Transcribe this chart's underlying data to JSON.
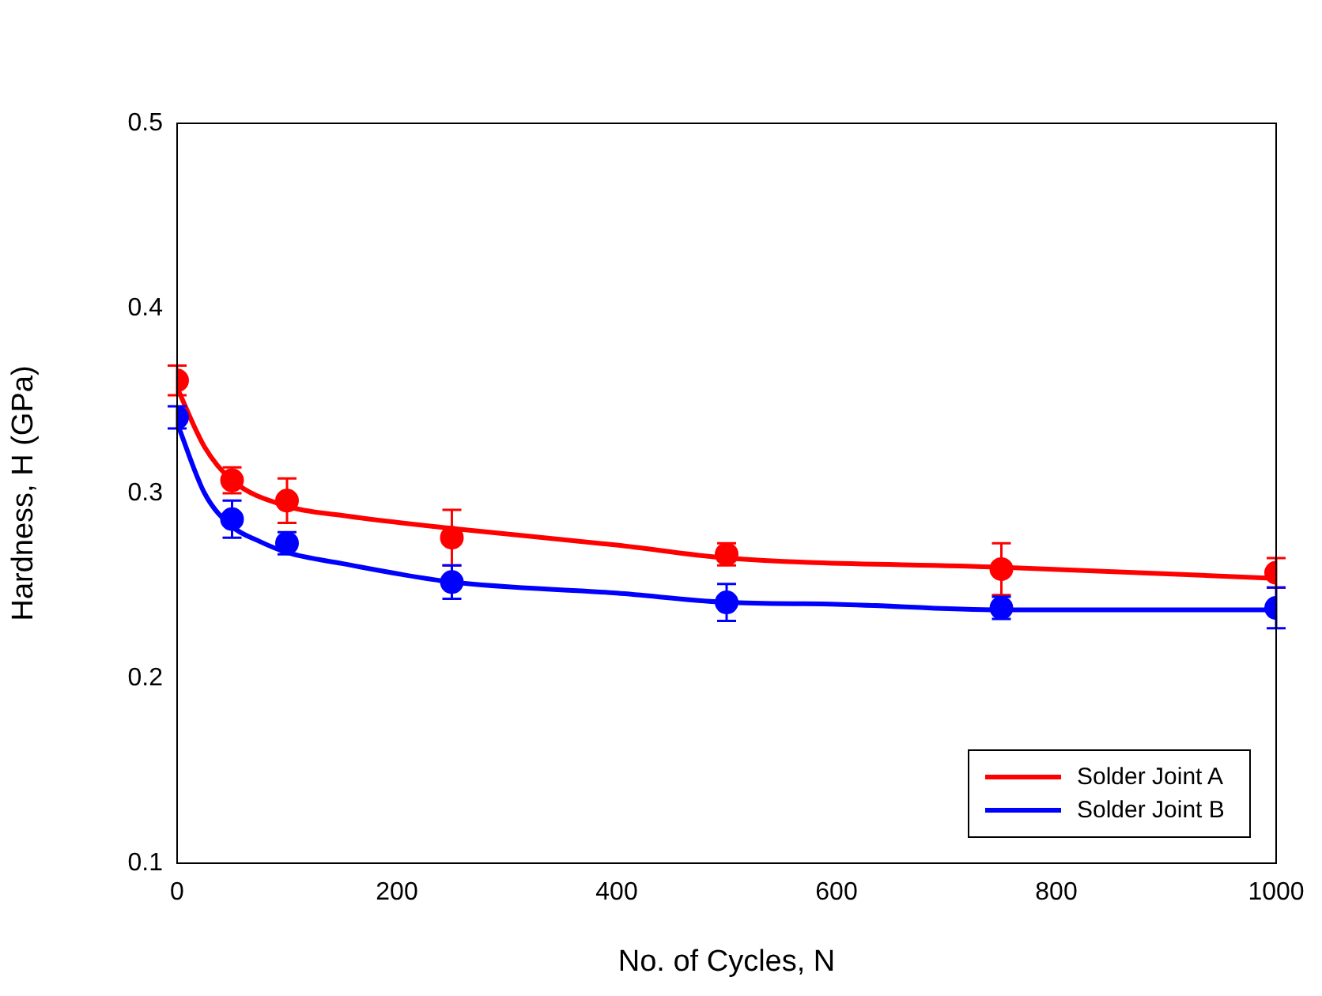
{
  "chart_data": {
    "type": "scatter",
    "xlabel": "No. of Cycles, N",
    "ylabel": "Hardness, H (GPa)",
    "x": [
      0,
      50,
      100,
      250,
      500,
      750,
      1000
    ],
    "xlim": [
      0,
      1000
    ],
    "xticks": [
      0,
      200,
      400,
      600,
      800,
      1000
    ],
    "ylim": [
      0.1,
      0.5
    ],
    "yticks": [
      {
        "value": 0.1,
        "label": "0.1"
      },
      {
        "value": 0.2,
        "label": "0.2"
      },
      {
        "value": 0.3,
        "label": "0.3"
      },
      {
        "value": 0.4,
        "label": "0.4"
      },
      {
        "value": 0.5,
        "label": "0.5"
      }
    ],
    "grid": false,
    "legend": "bottom right",
    "marker": "circle",
    "series": [
      {
        "color": "#ff0000",
        "values": [
          0.361,
          0.307,
          0.296,
          0.276,
          0.267,
          0.259,
          0.257
        ],
        "errors": [
          0.008,
          0.007,
          0.012,
          0.015,
          0.006,
          0.014,
          0.008
        ]
      },
      {
        "color": "#0000ff",
        "values": [
          0.341,
          0.286,
          0.273,
          0.252,
          0.241,
          0.238,
          0.238
        ],
        "errors": [
          0.006,
          0.01,
          0.006,
          0.009,
          0.01,
          0.006,
          0.011
        ]
      },
      {
        "type": "line",
        "marker": "none",
        "name": "Solder Joint A",
        "color": "#ff0000",
        "x": [
          0,
          25,
          50,
          100,
          150,
          250,
          400,
          500,
          750,
          1000
        ],
        "values": [
          0.357,
          0.325,
          0.307,
          0.293,
          0.288,
          0.281,
          0.272,
          0.265,
          0.26,
          0.254
        ]
      },
      {
        "type": "line",
        "marker": "none",
        "name": "Solder Joint B",
        "color": "#0000ff",
        "x": [
          0,
          25,
          50,
          75,
          100,
          150,
          250,
          400,
          500,
          600,
          750,
          1000
        ],
        "values": [
          0.338,
          0.3,
          0.282,
          0.274,
          0.268,
          0.262,
          0.252,
          0.246,
          0.241,
          0.24,
          0.237,
          0.237
        ]
      }
    ]
  }
}
